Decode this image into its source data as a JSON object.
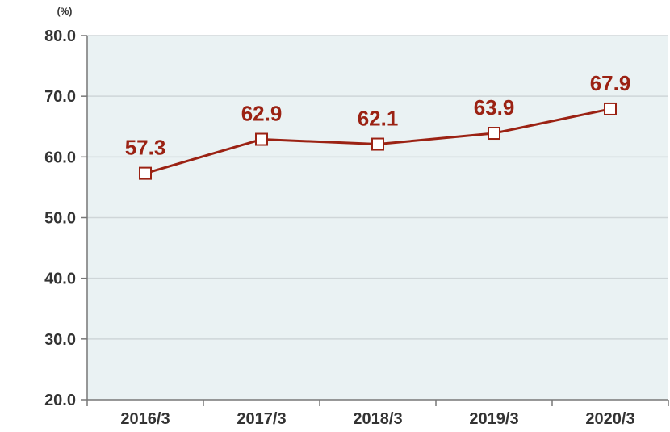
{
  "chart_data": {
    "type": "line",
    "unit": "(%)",
    "categories": [
      "2016/3",
      "2017/3",
      "2018/3",
      "2019/3",
      "2020/3"
    ],
    "series": [
      {
        "values": [
          57.3,
          62.9,
          62.1,
          63.9,
          67.9
        ]
      }
    ],
    "data_labels": [
      "57.3",
      "62.9",
      "62.1",
      "63.9",
      "67.9"
    ],
    "y_ticks": [
      "20.0",
      "30.0",
      "40.0",
      "50.0",
      "60.0",
      "70.0",
      "80.0"
    ],
    "y_tick_values": [
      20,
      30,
      40,
      50,
      60,
      70,
      80
    ],
    "ylim": [
      20,
      80
    ],
    "grid": true,
    "legend": "none",
    "colors": {
      "line": "#9b2213",
      "marker_fill": "#ffffff",
      "plot_background": "#eaf2f3",
      "grid": "#cfd6d8",
      "axis": "#777777",
      "text": "#333333"
    }
  }
}
